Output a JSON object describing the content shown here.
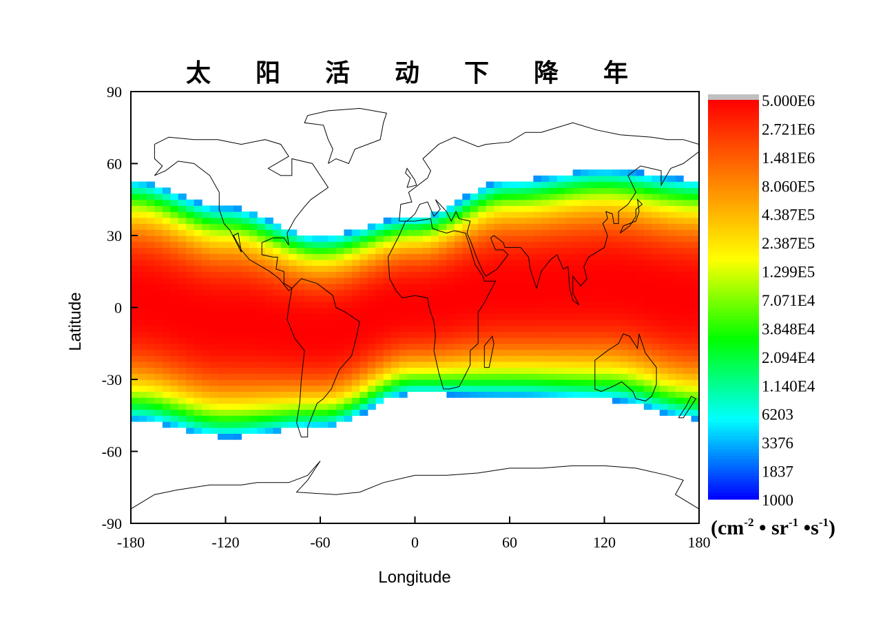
{
  "chart_data": {
    "type": "heatmap",
    "title": "太 阳 活 动 下 降 年",
    "xlabel": "Longitude",
    "ylabel": "Latitude",
    "xlim": [
      -180,
      180
    ],
    "ylim": [
      -90,
      90
    ],
    "xticks": [
      "-180",
      "-120",
      "-60",
      "0",
      "60",
      "120",
      "180"
    ],
    "yticks": [
      "90",
      "60",
      "30",
      "0",
      "-30",
      "-60",
      "-90"
    ],
    "grid": false,
    "cell_size_deg": {
      "lon": 5,
      "lat": 2.5
    },
    "band_model": {
      "longitudes": [
        -180,
        -120,
        -60,
        0,
        60,
        120,
        180
      ],
      "center_lat": [
        3,
        -6,
        -10,
        1,
        8,
        9.5,
        3.5
      ],
      "half_width_lat": [
        50,
        48,
        40,
        37,
        45,
        48,
        50
      ],
      "peak_value": 5000000,
      "edge_value": 2500
    },
    "colorbar": {
      "scale": "log",
      "range": [
        1000,
        5000000
      ],
      "labels": [
        "5.000E6",
        "2.721E6",
        "1.481E6",
        "8.060E5",
        "4.387E5",
        "2.387E5",
        "1.299E5",
        "7.071E4",
        "3.848E4",
        "2.094E4",
        "1.140E4",
        "6203",
        "3376",
        "1837",
        "1000"
      ],
      "unit": {
        "base": "(cm",
        "e1": "-2",
        "dot1": " • sr",
        "e2": "-1",
        "dot2": " •s",
        "e3": "-1",
        "close": ")"
      },
      "colors": [
        "#0000ff",
        "#00ffff",
        "#00ff00",
        "#ffff00",
        "#ff8000",
        "#ff0000"
      ],
      "overflow_color": "#c0c0c0"
    }
  }
}
